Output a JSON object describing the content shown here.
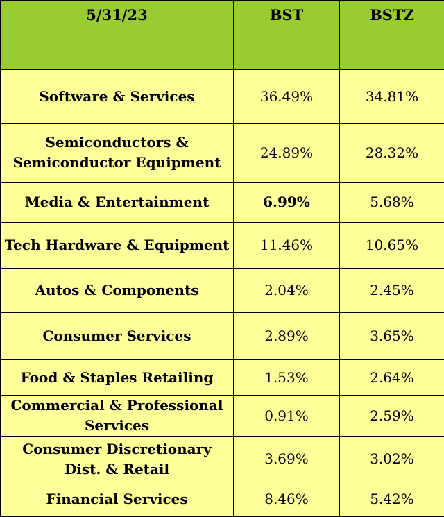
{
  "table": {
    "headers": [
      "5/31/23",
      "BST",
      "BSTZ"
    ],
    "rows": [
      {
        "category": "Software & Services",
        "bst": "36.49%",
        "bstz": "34.81%"
      },
      {
        "category": "Semiconductors & Semiconductor Equipment",
        "bst": "24.89%",
        "bstz": "28.32%"
      },
      {
        "category": "Media & Entertainment",
        "bst": "6.99%",
        "bstz": "5.68%"
      },
      {
        "category": "Tech Hardware & Equipment",
        "bst": "11.46%",
        "bstz": "10.65%"
      },
      {
        "category": "Autos & Components",
        "bst": "2.04%",
        "bstz": "2.45%"
      },
      {
        "category": "Consumer Services",
        "bst": "2.89%",
        "bstz": "3.65%"
      },
      {
        "category": "Food & Staples Retailing",
        "bst": "1.53%",
        "bstz": "2.64%"
      },
      {
        "category": "Commercial & Professional Services",
        "bst": "0.91%",
        "bstz": "2.59%"
      },
      {
        "category": "Consumer Discretionary Dist. & Retail",
        "bst": "3.69%",
        "bstz": "3.02%"
      },
      {
        "category": "Financial Services",
        "bst": "8.46%",
        "bstz": "5.42%"
      }
    ]
  },
  "colors": {
    "header_bg": "#99cc33",
    "body_bg": "#ffff99",
    "border": "#000000"
  }
}
